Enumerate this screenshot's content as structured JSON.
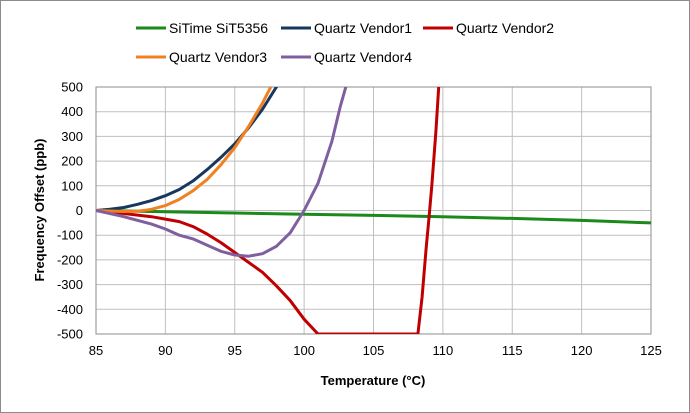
{
  "chart_data": {
    "type": "line",
    "xlabel": "Temperature (°C)",
    "ylabel": "Frequency Offset (ppb)",
    "xlim": [
      85,
      125
    ],
    "ylim": [
      -500,
      500
    ],
    "xticks": [
      85,
      90,
      95,
      100,
      105,
      110,
      115,
      120,
      125
    ],
    "yticks": [
      500,
      400,
      300,
      200,
      100,
      0,
      -100,
      -200,
      -300,
      -400,
      -500
    ],
    "grid": true,
    "legend_position": "top",
    "series": [
      {
        "name": "SiTime SiT5356",
        "color": "#1a8a1a",
        "points": [
          [
            85,
            0
          ],
          [
            90,
            -5
          ],
          [
            95,
            -10
          ],
          [
            100,
            -15
          ],
          [
            105,
            -20
          ],
          [
            110,
            -25
          ],
          [
            115,
            -32
          ],
          [
            120,
            -40
          ],
          [
            125,
            -50
          ]
        ]
      },
      {
        "name": "Quartz Vendor1",
        "color": "#17375e",
        "points": [
          [
            85,
            0
          ],
          [
            86,
            5
          ],
          [
            87,
            12
          ],
          [
            88,
            25
          ],
          [
            89,
            40
          ],
          [
            90,
            60
          ],
          [
            91,
            85
          ],
          [
            92,
            120
          ],
          [
            93,
            165
          ],
          [
            94,
            215
          ],
          [
            95,
            270
          ],
          [
            96,
            335
          ],
          [
            97,
            410
          ],
          [
            98,
            500
          ]
        ]
      },
      {
        "name": "Quartz Vendor2",
        "color": "#c00000",
        "points": [
          [
            85,
            0
          ],
          [
            87,
            -12
          ],
          [
            89,
            -25
          ],
          [
            90,
            -35
          ],
          [
            91,
            -45
          ],
          [
            92,
            -65
          ],
          [
            93,
            -95
          ],
          [
            94,
            -130
          ],
          [
            95,
            -170
          ],
          [
            96,
            -210
          ],
          [
            97,
            -250
          ],
          [
            98,
            -305
          ],
          [
            99,
            -365
          ],
          [
            100,
            -440
          ],
          [
            101,
            -500
          ],
          [
            102,
            -500
          ],
          [
            108.2,
            -500
          ],
          [
            108.5,
            -350
          ],
          [
            108.8,
            -150
          ],
          [
            109,
            -30
          ],
          [
            109.2,
            100
          ],
          [
            109.5,
            320
          ],
          [
            109.7,
            500
          ]
        ]
      },
      {
        "name": "Quartz Vendor3",
        "color": "#f08020",
        "points": [
          [
            85,
            0
          ],
          [
            86,
            -2
          ],
          [
            87,
            -4
          ],
          [
            88,
            -3
          ],
          [
            89,
            5
          ],
          [
            90,
            20
          ],
          [
            91,
            45
          ],
          [
            92,
            80
          ],
          [
            93,
            125
          ],
          [
            94,
            185
          ],
          [
            95,
            255
          ],
          [
            96,
            340
          ],
          [
            97,
            435
          ],
          [
            97.6,
            500
          ]
        ]
      },
      {
        "name": "Quartz Vendor4",
        "color": "#7f5f9f",
        "points": [
          [
            85,
            0
          ],
          [
            87,
            -25
          ],
          [
            89,
            -55
          ],
          [
            90,
            -75
          ],
          [
            91,
            -100
          ],
          [
            92,
            -115
          ],
          [
            93,
            -140
          ],
          [
            94,
            -165
          ],
          [
            95,
            -180
          ],
          [
            96,
            -185
          ],
          [
            97,
            -175
          ],
          [
            98,
            -145
          ],
          [
            99,
            -90
          ],
          [
            100,
            0
          ],
          [
            101,
            110
          ],
          [
            102,
            280
          ],
          [
            102.6,
            420
          ],
          [
            103,
            500
          ]
        ]
      }
    ]
  }
}
